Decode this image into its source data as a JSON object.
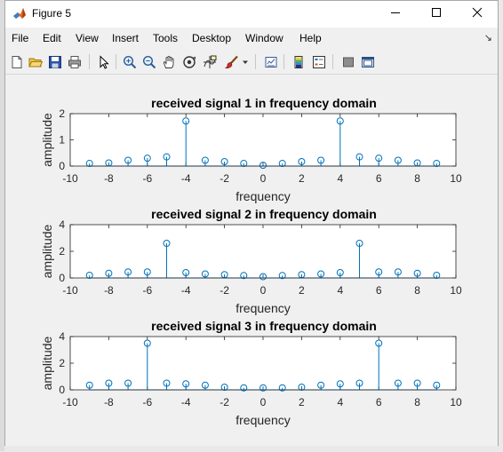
{
  "window": {
    "title": "Figure 5"
  },
  "menu": [
    "File",
    "Edit",
    "View",
    "Insert",
    "Tools",
    "Desktop",
    "Window",
    "Help"
  ],
  "toolbar_icons": [
    "new-file-icon",
    "open-folder-icon",
    "save-icon",
    "print-icon",
    "pointer-icon",
    "zoom-in-icon",
    "zoom-out-icon",
    "pan-hand-icon",
    "rotate-3d-icon",
    "data-cursor-icon",
    "brush-icon",
    "link-plot-icon",
    "colorbar-icon",
    "legend-icon",
    "hide-plot-tools-icon",
    "show-plot-tools-icon"
  ],
  "colors": {
    "stem": "#0072bd",
    "axes_bg": "#ffffff",
    "figure_bg": "#f0f0f0"
  },
  "chart_data": [
    {
      "type": "stem",
      "title": "received signal 1 in frequency domain",
      "xlabel": "frequency",
      "ylabel": "amplitude",
      "xlim": [
        -10,
        10
      ],
      "ylim": [
        0,
        2
      ],
      "xticks": [
        "-10",
        "-8",
        "-6",
        "-4",
        "-2",
        "0",
        "2",
        "4",
        "6",
        "8",
        "10"
      ],
      "yticks": [
        "0",
        "1",
        "2"
      ],
      "x": [
        -9,
        -8,
        -7,
        -6,
        -5,
        -4,
        -3,
        -2,
        -1,
        0,
        1,
        2,
        3,
        4,
        5,
        6,
        7,
        8,
        9
      ],
      "y": [
        0.1,
        0.12,
        0.22,
        0.3,
        0.35,
        1.72,
        0.22,
        0.17,
        0.1,
        0.03,
        0.1,
        0.17,
        0.22,
        1.72,
        0.35,
        0.3,
        0.22,
        0.12,
        0.1
      ]
    },
    {
      "type": "stem",
      "title": "received signal 2 in frequency domain",
      "xlabel": "frequency",
      "ylabel": "amplitude",
      "xlim": [
        -10,
        10
      ],
      "ylim": [
        0,
        4
      ],
      "xticks": [
        "-10",
        "-8",
        "-6",
        "-4",
        "-2",
        "0",
        "2",
        "4",
        "6",
        "8",
        "10"
      ],
      "yticks": [
        "0",
        "2",
        "4"
      ],
      "x": [
        -9,
        -8,
        -7,
        -6,
        -5,
        -4,
        -3,
        -2,
        -1,
        0,
        1,
        2,
        3,
        4,
        5,
        6,
        7,
        8,
        9
      ],
      "y": [
        0.2,
        0.35,
        0.45,
        0.45,
        2.6,
        0.4,
        0.3,
        0.25,
        0.18,
        0.1,
        0.18,
        0.25,
        0.3,
        0.4,
        2.6,
        0.45,
        0.45,
        0.35,
        0.2
      ]
    },
    {
      "type": "stem",
      "title": "received signal 3 in frequency domain",
      "xlabel": "frequency",
      "ylabel": "amplitude",
      "xlim": [
        -10,
        10
      ],
      "ylim": [
        0,
        4
      ],
      "xticks": [
        "-10",
        "-8",
        "-6",
        "-4",
        "-2",
        "0",
        "2",
        "4",
        "6",
        "8",
        "10"
      ],
      "yticks": [
        "0",
        "2",
        "4"
      ],
      "x": [
        -9,
        -8,
        -7,
        -6,
        -5,
        -4,
        -3,
        -2,
        -1,
        0,
        1,
        2,
        3,
        4,
        5,
        6,
        7,
        8,
        9
      ],
      "y": [
        0.35,
        0.5,
        0.5,
        3.5,
        0.5,
        0.45,
        0.35,
        0.2,
        0.15,
        0.15,
        0.15,
        0.2,
        0.35,
        0.45,
        0.5,
        3.5,
        0.5,
        0.5,
        0.35
      ]
    }
  ]
}
